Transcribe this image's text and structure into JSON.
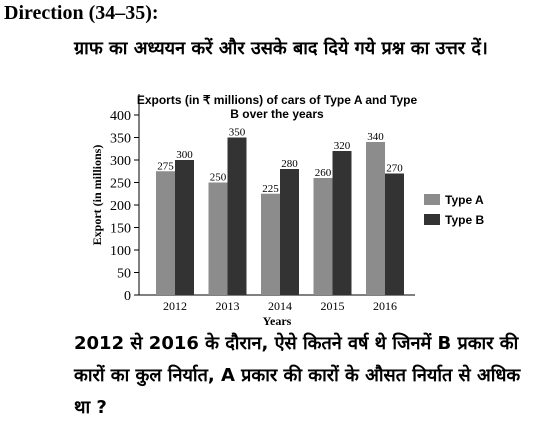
{
  "heading": "Direction (34–35):",
  "instruction": "ग्राफ का अध्ययन करें और उसके बाद दिये गये प्रश्न का उत्तर दें।",
  "question": "2012 से 2016 के दौरान, ऐसे कितने वर्ष थे जिनमें B प्रकार की कारों का कुल निर्यात, A प्रकार की कारों के औसत निर्यात से अधिक था ?",
  "chart_data": {
    "type": "bar",
    "title_line1": "Exports (in ₹ millions) of cars of Type A and Type",
    "title_line2": "B over the years",
    "xlabel": "Years",
    "ylabel": "Export (in millions)",
    "categories": [
      "2012",
      "2013",
      "2014",
      "2015",
      "2016"
    ],
    "series": [
      {
        "name": "Type A",
        "values": [
          275,
          250,
          225,
          260,
          340
        ],
        "color": "#8c8c8c"
      },
      {
        "name": "Type B",
        "values": [
          300,
          350,
          280,
          320,
          270
        ],
        "color": "#333333"
      }
    ],
    "yticks": [
      "0",
      "50",
      "100",
      "150",
      "200",
      "250",
      "300",
      "350",
      "400"
    ],
    "ylim": [
      0,
      400
    ],
    "grid": false,
    "legend_position": "right"
  }
}
